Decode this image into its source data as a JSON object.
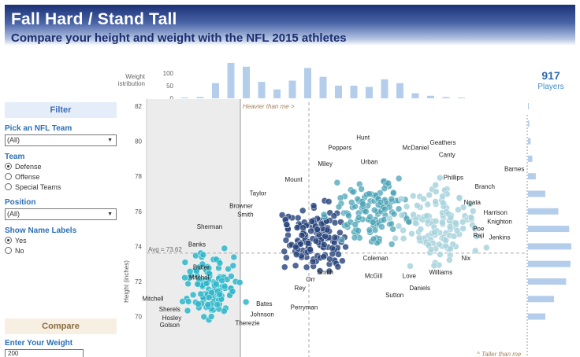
{
  "header": {
    "title": "Fall Hard / Stand Tall",
    "subtitle": "Compare your height and weight with the NFL 2015 athletes"
  },
  "summary": {
    "count": "917",
    "count_label": "Players"
  },
  "filter": {
    "heading": "Filter",
    "team_label": "Pick an NFL Team",
    "team_value": "(All)",
    "unit_label": "Team",
    "unit_options": [
      "Defense",
      "Offense",
      "Special Teams"
    ],
    "unit_selected": "Defense",
    "position_label": "Position",
    "position_value": "(All)",
    "names_label": "Show Name Labels",
    "names_options": [
      "Yes",
      "No"
    ],
    "names_selected": "Yes"
  },
  "compare": {
    "heading": "Compare",
    "weight_label": "Enter Your Weight",
    "weight_value": "200"
  },
  "annotations": {
    "heavier": "Heavier than me ˃",
    "taller": "^ Taller than me",
    "avg": "Avg = 73.62"
  },
  "colors": {
    "header_dark": "#1b3175",
    "accent": "#2e6ab0",
    "dot_light": "#a9d3dd",
    "dot_mid": "#4ba3b5",
    "dot_dark": "#25427b",
    "dot_teal": "#2eb6c9",
    "bar": "#b3cdea"
  },
  "chart_data": [
    {
      "type": "bar",
      "title": "Weight Distribution",
      "yticks": [
        100,
        50,
        0
      ],
      "ylim": [
        0,
        140
      ],
      "values": [
        2,
        5,
        60,
        140,
        125,
        65,
        35,
        70,
        120,
        85,
        50,
        50,
        45,
        75,
        60,
        20,
        10,
        5,
        2
      ]
    },
    {
      "type": "scatter",
      "ylabel": "Height (inches)",
      "yticks": [
        70,
        72,
        74,
        76,
        78,
        80,
        82
      ],
      "ylim": [
        68.5,
        82
      ],
      "xlim": [
        160,
        340
      ],
      "avg_height": 73.62,
      "my_weight": 200,
      "gridlines": false,
      "name_labels": [
        {
          "name": "Hunt",
          "x": 263,
          "y": 80.1
        },
        {
          "name": "Geathers",
          "x": 301,
          "y": 79.8
        },
        {
          "name": "Peppers",
          "x": 252,
          "y": 79.5
        },
        {
          "name": "McDaniel",
          "x": 288,
          "y": 79.5
        },
        {
          "name": "Canty",
          "x": 303,
          "y": 79.1
        },
        {
          "name": "Miley",
          "x": 245,
          "y": 78.6
        },
        {
          "name": "Urban",
          "x": 266,
          "y": 78.7
        },
        {
          "name": "Barnes",
          "x": 335,
          "y": 78.3
        },
        {
          "name": "Phillips",
          "x": 306,
          "y": 77.8
        },
        {
          "name": "Mount",
          "x": 230,
          "y": 77.7
        },
        {
          "name": "Branch",
          "x": 321,
          "y": 77.3
        },
        {
          "name": "Taylor",
          "x": 213,
          "y": 76.9
        },
        {
          "name": "Ngata",
          "x": 315,
          "y": 76.4
        },
        {
          "name": "Browner",
          "x": 205,
          "y": 76.2
        },
        {
          "name": "Harrison",
          "x": 326,
          "y": 75.8
        },
        {
          "name": "Smith",
          "x": 207,
          "y": 75.7
        },
        {
          "name": "Knighton",
          "x": 328,
          "y": 75.3
        },
        {
          "name": "Sherman",
          "x": 190,
          "y": 75.0
        },
        {
          "name": "Poe",
          "x": 318,
          "y": 74.9
        },
        {
          "name": "Raji",
          "x": 318,
          "y": 74.5
        },
        {
          "name": "Jenkins",
          "x": 328,
          "y": 74.4
        },
        {
          "name": "Banks",
          "x": 184,
          "y": 74.0
        },
        {
          "name": "Coleman",
          "x": 269,
          "y": 73.2
        },
        {
          "name": "Nix",
          "x": 312,
          "y": 73.2
        },
        {
          "name": "Butler",
          "x": 186,
          "y": 72.7
        },
        {
          "name": "Smith",
          "x": 245,
          "y": 72.4
        },
        {
          "name": "Williams",
          "x": 300,
          "y": 72.4
        },
        {
          "name": "Mitchel",
          "x": 185,
          "y": 72.1
        },
        {
          "name": "Orr",
          "x": 238,
          "y": 72.0
        },
        {
          "name": "McGill",
          "x": 268,
          "y": 72.2
        },
        {
          "name": "Love",
          "x": 285,
          "y": 72.2
        },
        {
          "name": "Daniels",
          "x": 290,
          "y": 71.5
        },
        {
          "name": "Rey",
          "x": 233,
          "y": 71.5
        },
        {
          "name": "Sutton",
          "x": 278,
          "y": 71.1
        },
        {
          "name": "Mitchell",
          "x": 163,
          "y": 70.9
        },
        {
          "name": "Bates",
          "x": 216,
          "y": 70.6
        },
        {
          "name": "Sherels",
          "x": 171,
          "y": 70.3
        },
        {
          "name": "Perryman",
          "x": 235,
          "y": 70.4
        },
        {
          "name": "Johnson",
          "x": 215,
          "y": 70.0
        },
        {
          "name": "Hosley",
          "x": 172,
          "y": 69.8
        },
        {
          "name": "Golson",
          "x": 171,
          "y": 69.4
        },
        {
          "name": "Therezie",
          "x": 208,
          "y": 69.5
        }
      ]
    },
    {
      "type": "bar",
      "orientation": "horizontal",
      "description_source": "height distribution",
      "categories": [
        82,
        81,
        80,
        79,
        78,
        77,
        76,
        75,
        74,
        73,
        72,
        71,
        70
      ],
      "values": [
        2,
        3,
        6,
        10,
        18,
        40,
        70,
        95,
        100,
        98,
        88,
        60,
        40
      ]
    }
  ]
}
